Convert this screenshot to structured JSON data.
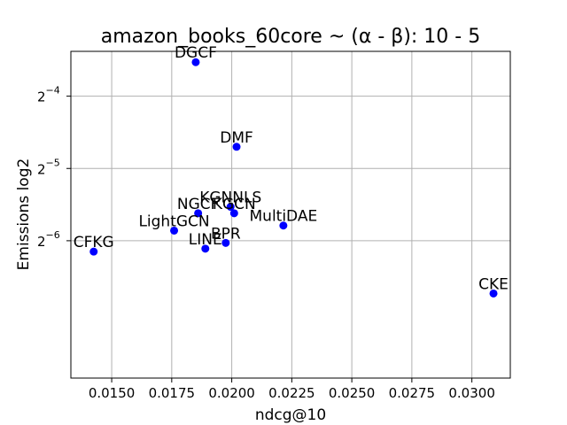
{
  "chart_data": {
    "type": "scatter",
    "title": "amazon_books_60core ~ (α - β): 10 - 5",
    "xlabel": "ndcg@10",
    "ylabel": "Emissions log2",
    "y_scale": "log2",
    "grid": true,
    "marker_color": "#0000ff",
    "xlim": [
      0.0133,
      0.0316
    ],
    "ylim_log2": [
      -7.9,
      -3.38
    ],
    "x_ticks": [
      0.015,
      0.0175,
      0.02,
      0.0225,
      0.025,
      0.0275,
      0.03
    ],
    "x_tick_labels": [
      "0.0150",
      "0.0175",
      "0.0200",
      "0.0225",
      "0.0250",
      "0.0275",
      "0.0300"
    ],
    "y_ticks_log2": [
      -4,
      -5,
      -6
    ],
    "y_tick_labels": [
      {
        "base": "2",
        "exp": "−4"
      },
      {
        "base": "2",
        "exp": "−5"
      },
      {
        "base": "2",
        "exp": "−6"
      }
    ],
    "points": [
      {
        "label": "DGCF",
        "x": 0.0185,
        "y_log2": -3.53
      },
      {
        "label": "DMF",
        "x": 0.0202,
        "y_log2": -4.7
      },
      {
        "label": "KGNNLS",
        "x": 0.01995,
        "y_log2": -5.53
      },
      {
        "label": "NGCF",
        "x": 0.0186,
        "y_log2": -5.62
      },
      {
        "label": "KGCN",
        "x": 0.0201,
        "y_log2": -5.62
      },
      {
        "label": "MultiDAE",
        "x": 0.02215,
        "y_log2": -5.79
      },
      {
        "label": "LightGCN",
        "x": 0.0176,
        "y_log2": -5.86
      },
      {
        "label": "BPR",
        "x": 0.01975,
        "y_log2": -6.03
      },
      {
        "label": "LINE",
        "x": 0.0189,
        "y_log2": -6.11
      },
      {
        "label": "CFKG",
        "x": 0.01425,
        "y_log2": -6.15
      },
      {
        "label": "CKE",
        "x": 0.0309,
        "y_log2": -6.73
      }
    ]
  }
}
